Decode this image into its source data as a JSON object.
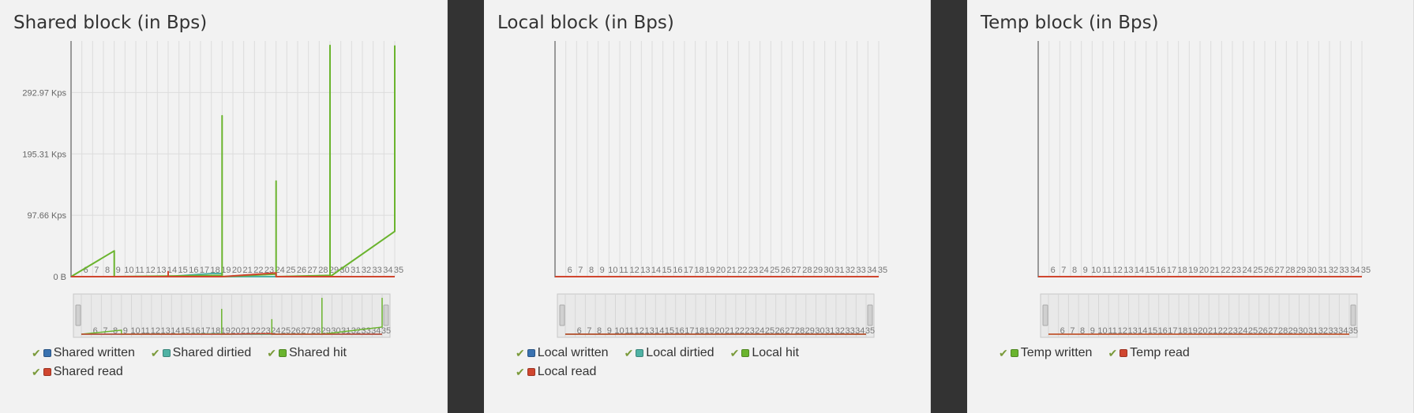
{
  "colors": {
    "written": "#3a72b0",
    "dirtied": "#4fb2a4",
    "hit": "#6ab42e",
    "read": "#d0462f",
    "temp_written": "#6ab42e"
  },
  "panels": [
    {
      "title": "Shared block (in Bps)",
      "legend": [
        {
          "label": "Shared written",
          "color": "#3a72b0",
          "checked": true
        },
        {
          "label": "Shared dirtied",
          "color": "#4fb2a4",
          "checked": true
        },
        {
          "label": "Shared hit",
          "color": "#6ab42e",
          "checked": true
        },
        {
          "label": "Shared read",
          "color": "#d0462f",
          "checked": true
        }
      ]
    },
    {
      "title": "Local block (in Bps)",
      "legend": [
        {
          "label": "Local written",
          "color": "#3a72b0",
          "checked": true
        },
        {
          "label": "Local dirtied",
          "color": "#4fb2a4",
          "checked": true
        },
        {
          "label": "Local hit",
          "color": "#6ab42e",
          "checked": true
        },
        {
          "label": "Local read",
          "color": "#d0462f",
          "checked": true
        }
      ]
    },
    {
      "title": "Temp block (in Bps)",
      "legend": [
        {
          "label": "Temp written",
          "color": "#6ab42e",
          "checked": true
        },
        {
          "label": "Temp read",
          "color": "#d0462f",
          "checked": true
        }
      ]
    }
  ],
  "chart_data": [
    {
      "type": "line",
      "title": "Shared block (in Bps)",
      "ylim": [
        0,
        375
      ],
      "y_ticks": [
        {
          "value": 0,
          "label": "0 B"
        },
        {
          "value": 97.66,
          "label": "97.66 Kps"
        },
        {
          "value": 195.31,
          "label": "195.31 Kps"
        },
        {
          "value": 292.97,
          "label": "292.97 Kps"
        }
      ],
      "x": [
        5,
        6,
        7,
        8,
        9,
        10,
        11,
        12,
        13,
        14,
        15,
        16,
        17,
        18,
        19,
        20,
        21,
        22,
        23,
        24,
        25,
        26,
        27,
        28,
        29,
        30,
        31,
        32,
        33,
        34,
        35
      ],
      "x_tick_labels": [
        "",
        "6",
        "7",
        "8",
        "9",
        "10",
        "11",
        "12",
        "13",
        "14",
        "15",
        "16",
        "17",
        "18",
        "19",
        "20",
        "21",
        "22",
        "23",
        "24",
        "25",
        "26",
        "27",
        "28",
        "29",
        "30",
        "31",
        "32",
        "33",
        "34",
        "35"
      ],
      "series": [
        {
          "name": "Shared written",
          "color": "#3a72b0",
          "points": [
            [
              5,
              0
            ],
            [
              35,
              0
            ]
          ]
        },
        {
          "name": "Shared dirtied",
          "color": "#4fb2a4",
          "points": [
            [
              5,
              0
            ],
            [
              14,
              0
            ],
            [
              18,
              5
            ],
            [
              19,
              5
            ],
            [
              19,
              0
            ],
            [
              35,
              0
            ]
          ]
        },
        {
          "name": "Shared hit",
          "color": "#6ab42e",
          "points": [
            [
              5,
              0
            ],
            [
              9,
              41
            ],
            [
              9,
              0
            ],
            [
              19,
              2
            ],
            [
              19,
              256
            ],
            [
              19,
              0
            ],
            [
              24,
              4
            ],
            [
              24,
              152
            ],
            [
              24,
              0
            ],
            [
              29,
              2
            ],
            [
              29,
              368
            ],
            [
              29,
              0
            ],
            [
              35,
              72
            ],
            [
              35,
              368
            ]
          ]
        },
        {
          "name": "Shared read",
          "color": "#d0462f",
          "points": [
            [
              5,
              0
            ],
            [
              14,
              0
            ],
            [
              14,
              8
            ],
            [
              14,
              0
            ],
            [
              19,
              0
            ],
            [
              24,
              6
            ],
            [
              24,
              0
            ],
            [
              35,
              0
            ]
          ]
        }
      ]
    },
    {
      "type": "line",
      "title": "Local block (in Bps)",
      "x": [
        5,
        6,
        7,
        8,
        9,
        10,
        11,
        12,
        13,
        14,
        15,
        16,
        17,
        18,
        19,
        20,
        21,
        22,
        23,
        24,
        25,
        26,
        27,
        28,
        29,
        30,
        31,
        32,
        33,
        34,
        35
      ],
      "x_tick_labels": [
        "",
        "6",
        "7",
        "8",
        "9",
        "10",
        "11",
        "12",
        "13",
        "14",
        "15",
        "16",
        "17",
        "18",
        "19",
        "20",
        "21",
        "22",
        "23",
        "24",
        "25",
        "26",
        "27",
        "28",
        "29",
        "30",
        "31",
        "32",
        "33",
        "34",
        "35"
      ],
      "series": [
        {
          "name": "Local written",
          "color": "#3a72b0",
          "points": [
            [
              5,
              0
            ],
            [
              35,
              0
            ]
          ]
        },
        {
          "name": "Local dirtied",
          "color": "#4fb2a4",
          "points": [
            [
              5,
              0
            ],
            [
              35,
              0
            ]
          ]
        },
        {
          "name": "Local hit",
          "color": "#6ab42e",
          "points": [
            [
              5,
              0
            ],
            [
              35,
              0
            ]
          ]
        },
        {
          "name": "Local read",
          "color": "#d0462f",
          "points": [
            [
              5,
              0
            ],
            [
              35,
              0
            ]
          ]
        }
      ]
    },
    {
      "type": "line",
      "title": "Temp block (in Bps)",
      "x": [
        5,
        6,
        7,
        8,
        9,
        10,
        11,
        12,
        13,
        14,
        15,
        16,
        17,
        18,
        19,
        20,
        21,
        22,
        23,
        24,
        25,
        26,
        27,
        28,
        29,
        30,
        31,
        32,
        33,
        34,
        35
      ],
      "x_tick_labels": [
        "",
        "6",
        "7",
        "8",
        "9",
        "10",
        "11",
        "12",
        "13",
        "14",
        "15",
        "16",
        "17",
        "18",
        "19",
        "20",
        "21",
        "22",
        "23",
        "24",
        "25",
        "26",
        "27",
        "28",
        "29",
        "30",
        "31",
        "32",
        "33",
        "34",
        "35"
      ],
      "series": [
        {
          "name": "Temp written",
          "color": "#6ab42e",
          "points": [
            [
              5,
              0
            ],
            [
              35,
              0
            ]
          ]
        },
        {
          "name": "Temp read",
          "color": "#d0462f",
          "points": [
            [
              5,
              0
            ],
            [
              35,
              0
            ]
          ]
        }
      ]
    }
  ]
}
